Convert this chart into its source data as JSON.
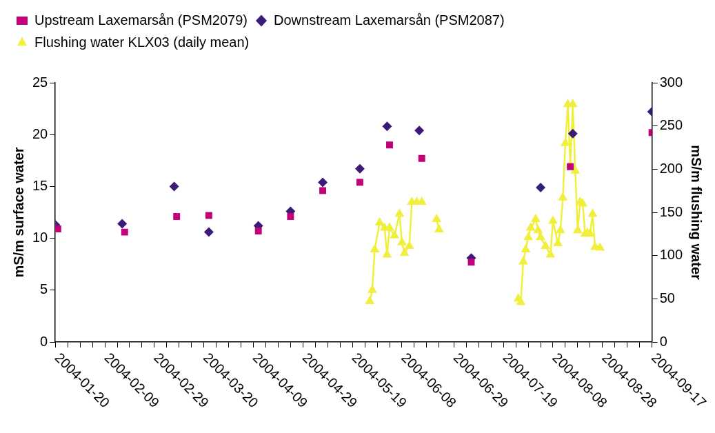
{
  "chart_data": {
    "type": "scatter",
    "xlim": [
      "2004-01-20",
      "2004-09-17"
    ],
    "xticks": [
      {
        "value": "2004-01-20",
        "label": "2004-01-20"
      },
      {
        "value": "2004-01-25",
        "label": null
      },
      {
        "value": "2004-01-30",
        "label": null
      },
      {
        "value": "2004-02-04",
        "label": null
      },
      {
        "value": "2004-02-09",
        "label": "2004-02-09"
      },
      {
        "value": "2004-02-14",
        "label": null
      },
      {
        "value": "2004-02-19",
        "label": null
      },
      {
        "value": "2004-02-24",
        "label": null
      },
      {
        "value": "2004-02-29",
        "label": "2004-02-29"
      },
      {
        "value": "2004-03-05",
        "label": null
      },
      {
        "value": "2004-03-10",
        "label": null
      },
      {
        "value": "2004-03-15",
        "label": null
      },
      {
        "value": "2004-03-20",
        "label": "2004-03-20"
      },
      {
        "value": "2004-03-25",
        "label": null
      },
      {
        "value": "2004-03-30",
        "label": null
      },
      {
        "value": "2004-04-04",
        "label": null
      },
      {
        "value": "2004-04-09",
        "label": "2004-04-09"
      },
      {
        "value": "2004-04-14",
        "label": null
      },
      {
        "value": "2004-04-19",
        "label": null
      },
      {
        "value": "2004-04-24",
        "label": null
      },
      {
        "value": "2004-04-29",
        "label": "2004-04-29"
      },
      {
        "value": "2004-05-04",
        "label": null
      },
      {
        "value": "2004-05-09",
        "label": null
      },
      {
        "value": "2004-05-14",
        "label": null
      },
      {
        "value": "2004-05-19",
        "label": "2004-05-19"
      },
      {
        "value": "2004-05-24",
        "label": null
      },
      {
        "value": "2004-05-29",
        "label": null
      },
      {
        "value": "2004-06-03",
        "label": null
      },
      {
        "value": "2004-06-08",
        "label": "2004-06-08"
      },
      {
        "value": "2004-06-13",
        "label": null
      },
      {
        "value": "2004-06-18",
        "label": null
      },
      {
        "value": "2004-06-23",
        "label": null
      },
      {
        "value": "2004-06-29",
        "label": "2004-06-29"
      },
      {
        "value": "2004-07-04",
        "label": null
      },
      {
        "value": "2004-07-09",
        "label": null
      },
      {
        "value": "2004-07-14",
        "label": null
      },
      {
        "value": "2004-07-19",
        "label": "2004-07-19"
      },
      {
        "value": "2004-07-24",
        "label": null
      },
      {
        "value": "2004-07-29",
        "label": null
      },
      {
        "value": "2004-08-03",
        "label": null
      },
      {
        "value": "2004-08-08",
        "label": "2004-08-08"
      },
      {
        "value": "2004-08-13",
        "label": null
      },
      {
        "value": "2004-08-18",
        "label": null
      },
      {
        "value": "2004-08-23",
        "label": null
      },
      {
        "value": "2004-08-28",
        "label": "2004-08-28"
      },
      {
        "value": "2004-09-02",
        "label": null
      },
      {
        "value": "2004-09-07",
        "label": null
      },
      {
        "value": "2004-09-12",
        "label": null
      },
      {
        "value": "2004-09-17",
        "label": "2004-09-17"
      }
    ],
    "ylabel": "mS/m surface water",
    "y2label": "mS/m flushing water",
    "ylim": [
      0,
      25
    ],
    "yticks": [
      0,
      5,
      10,
      15,
      20,
      25
    ],
    "y2lim": [
      0,
      300
    ],
    "y2ticks": [
      0,
      50,
      100,
      150,
      200,
      250,
      300
    ],
    "grid": false,
    "legend": "top left",
    "series": [
      {
        "name": "Upstream Laxemarsån (PSM2079)",
        "type": "scatter",
        "marker": "square",
        "color": "#c2007a",
        "x": [
          "2004-01-21",
          "2004-02-17",
          "2004-03-09",
          "2004-03-22",
          "2004-04-11",
          "2004-04-24",
          "2004-05-07",
          "2004-05-22",
          "2004-06-03",
          "2004-06-16",
          "2004-07-06",
          "2004-08-15",
          "2004-09-17"
        ],
        "values": [
          10.9,
          10.6,
          12.1,
          12.2,
          10.7,
          12.1,
          14.6,
          15.4,
          19.0,
          17.7,
          7.7,
          16.9,
          20.2
        ]
      },
      {
        "name": "Downstream Laxemarsån (PSM2087)",
        "type": "scatter",
        "marker": "diamond",
        "color": "#3b1a78",
        "x": [
          "2004-01-20",
          "2004-02-16",
          "2004-03-08",
          "2004-03-22",
          "2004-04-11",
          "2004-04-24",
          "2004-05-07",
          "2004-05-22",
          "2004-06-02",
          "2004-06-15",
          "2004-07-06",
          "2004-08-03",
          "2004-08-16",
          "2004-09-17"
        ],
        "values": [
          11.3,
          11.4,
          15.0,
          10.6,
          11.2,
          12.6,
          15.4,
          16.7,
          20.8,
          20.4,
          8.1,
          14.9,
          20.1,
          22.2
        ]
      },
      {
        "name": "Flushing water KLX03 (daily mean)",
        "type": "line",
        "marker": "triangle",
        "line_style": "solid",
        "axis": "y2",
        "color": "#f0ef3c",
        "x": [
          "2004-05-26",
          "2004-05-27",
          "2004-05-28",
          "2004-05-30",
          "2004-06-01",
          "2004-06-02",
          "2004-06-03",
          "2004-06-05",
          "2004-06-07",
          "2004-06-08",
          "2004-06-09",
          "2004-06-11",
          "2004-06-12",
          "2004-06-14",
          "2004-06-16",
          "2004-06-19",
          "2004-06-22",
          "2004-06-23",
          "2004-07-10",
          "2004-07-25",
          "2004-07-26",
          "2004-07-27",
          "2004-07-28",
          "2004-07-29",
          "2004-07-30",
          "2004-08-01",
          "2004-08-02",
          "2004-08-03",
          "2004-08-05",
          "2004-08-07",
          "2004-08-08",
          "2004-08-10",
          "2004-08-11",
          "2004-08-12",
          "2004-08-13",
          "2004-08-14",
          "2004-08-15",
          "2004-08-16",
          "2004-08-17",
          "2004-08-18",
          "2004-08-19",
          "2004-08-20",
          "2004-08-21",
          "2004-08-22",
          "2004-08-23",
          "2004-08-24",
          "2004-08-25",
          "2004-08-27"
        ],
        "values": [
          47,
          60,
          107,
          138,
          132,
          101,
          132,
          123,
          148,
          115,
          103,
          111,
          162,
          162,
          162,
          null,
          142,
          130,
          null,
          50,
          46,
          93,
          107,
          121,
          132,
          142,
          129,
          121,
          111,
          101,
          140,
          114,
          129,
          167,
          230,
          275,
          205,
          275,
          198,
          129,
          162,
          160,
          125,
          126,
          125,
          148,
          110,
          109
        ]
      }
    ]
  }
}
